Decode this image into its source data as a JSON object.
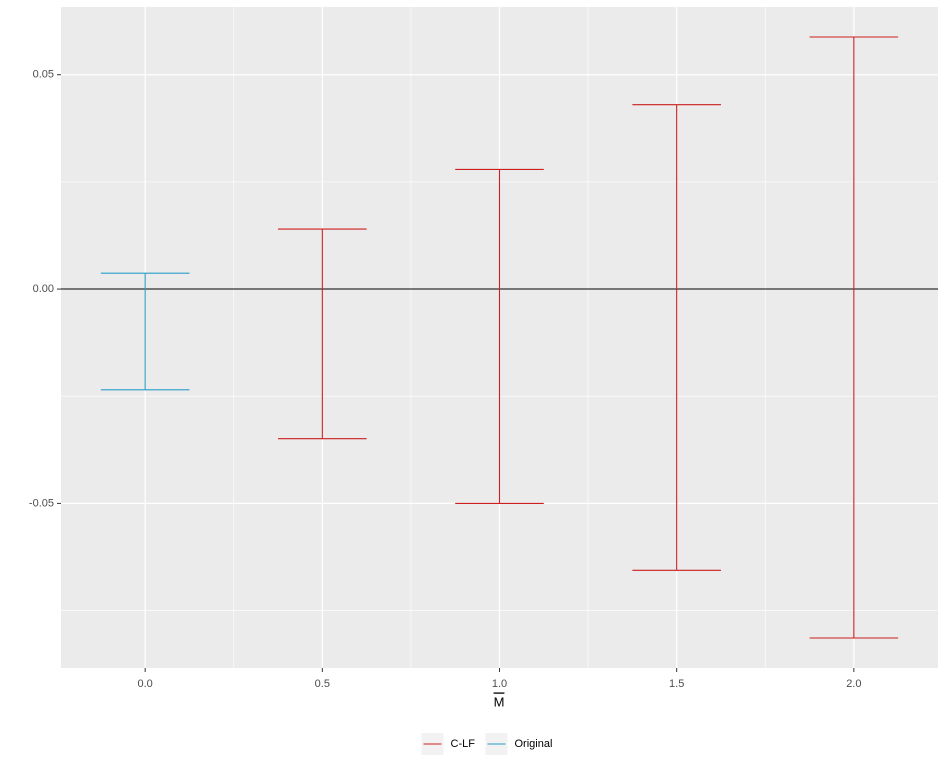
{
  "chart_data": {
    "type": "errorbar",
    "x_label": "M",
    "xlim": [
      -0.2375,
      2.2375
    ],
    "xticks": [
      {
        "value": 0,
        "label": "0.0"
      },
      {
        "value": 0.5,
        "label": "0.5"
      },
      {
        "value": 1,
        "label": "1.0"
      },
      {
        "value": 1.5,
        "label": "1.5"
      },
      {
        "value": 2,
        "label": "2.0"
      }
    ],
    "ylim": [
      -0.0884,
      0.0658
    ],
    "yticks": [
      {
        "value": -0.05,
        "label": "-0.05"
      },
      {
        "value": 0,
        "label": "0.00"
      },
      {
        "value": 0.05,
        "label": "0.05"
      }
    ],
    "grid": true,
    "reference_line": 0,
    "bar_width": 0.25,
    "legend": "bottom",
    "series": [
      {
        "name": "C-LF",
        "color": "#cc1f1f",
        "x": [
          0.5,
          1,
          1.5,
          2
        ],
        "lower": [
          -0.0349,
          -0.05,
          -0.0656,
          -0.0814
        ],
        "upper": [
          0.014,
          0.0279,
          0.043,
          0.0588
        ]
      },
      {
        "name": "Original",
        "color": "#2b9cc8",
        "x": [
          0
        ],
        "lower": [
          -0.0235
        ],
        "upper": [
          0.0037
        ]
      }
    ]
  }
}
